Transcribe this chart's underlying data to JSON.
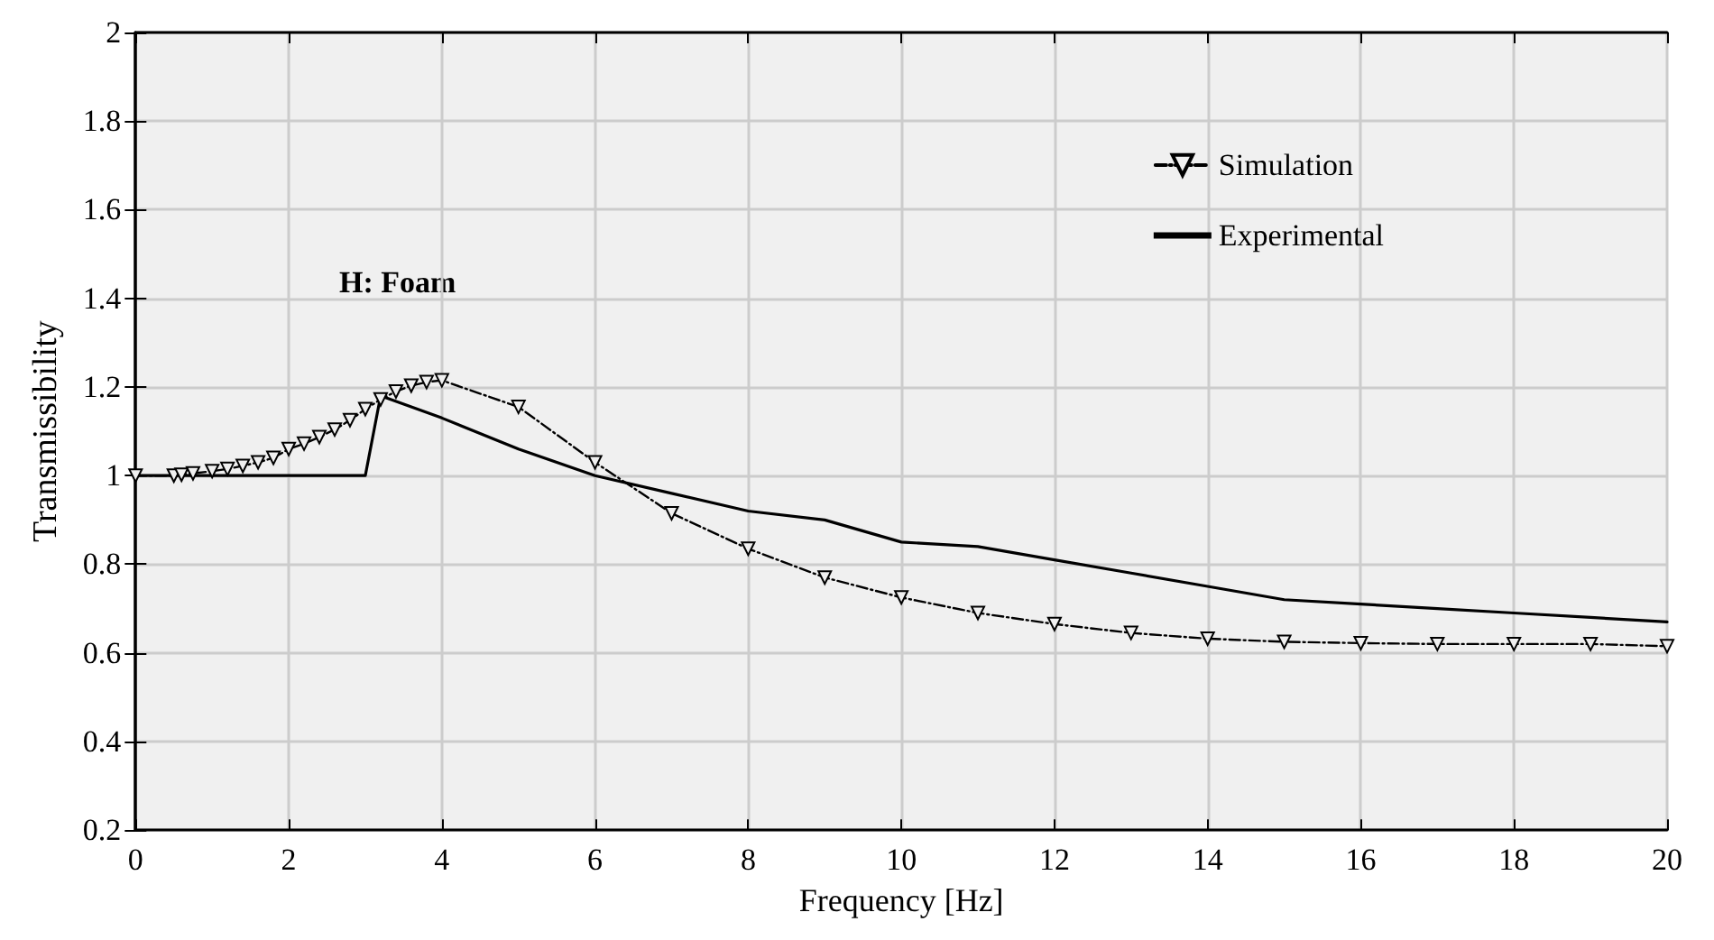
{
  "chart_data": {
    "type": "line",
    "xlabel": "Frequency [Hz]",
    "ylabel": "Transmissibility",
    "annotations": [
      "H: Foam"
    ],
    "xlim": [
      0,
      20
    ],
    "xticks": [
      0,
      2,
      4,
      6,
      8,
      10,
      12,
      14,
      16,
      18,
      20
    ],
    "ylim": [
      0.2,
      2
    ],
    "yticks": [
      0.2,
      0.4,
      0.6,
      0.8,
      1,
      1.2,
      1.4,
      1.6,
      1.8,
      2
    ],
    "grid": true,
    "legend": "top right",
    "series": [
      {
        "name": "Simulation",
        "color": "#000000",
        "marker": "triangle",
        "line_style": "dashed",
        "x": [
          0,
          0.5,
          0.6,
          0.75,
          1,
          1.2,
          1.4,
          1.6,
          1.8,
          2,
          2.2,
          2.4,
          2.6,
          2.8,
          3,
          3.2,
          3.4,
          3.6,
          3.8,
          4,
          5,
          6,
          7,
          8,
          9,
          10,
          11,
          12,
          13,
          14,
          15,
          16,
          17,
          18,
          19,
          20
        ],
        "values": [
          1,
          1,
          1.002,
          1.005,
          1.01,
          1.015,
          1.022,
          1.03,
          1.04,
          1.06,
          1.072,
          1.087,
          1.104,
          1.125,
          1.15,
          1.172,
          1.19,
          1.203,
          1.211,
          1.215,
          1.155,
          1.03,
          0.915,
          0.835,
          0.77,
          0.725,
          0.69,
          0.665,
          0.645,
          0.632,
          0.625,
          0.622,
          0.62,
          0.62,
          0.62,
          0.615
        ]
      },
      {
        "name": "Experimental",
        "color": "#000000",
        "marker": "none",
        "line_style": "solid",
        "x": [
          0,
          3,
          3.2,
          4,
          5,
          6,
          7,
          8,
          9,
          10,
          11,
          12,
          13,
          14,
          15,
          16,
          17,
          18,
          19,
          20
        ],
        "values": [
          1,
          1,
          1.18,
          1.13,
          1.06,
          1,
          0.96,
          0.92,
          0.9,
          0.85,
          0.84,
          0.81,
          0.78,
          0.75,
          0.72,
          0.71,
          0.7,
          0.69,
          0.68,
          0.67
        ]
      }
    ]
  }
}
